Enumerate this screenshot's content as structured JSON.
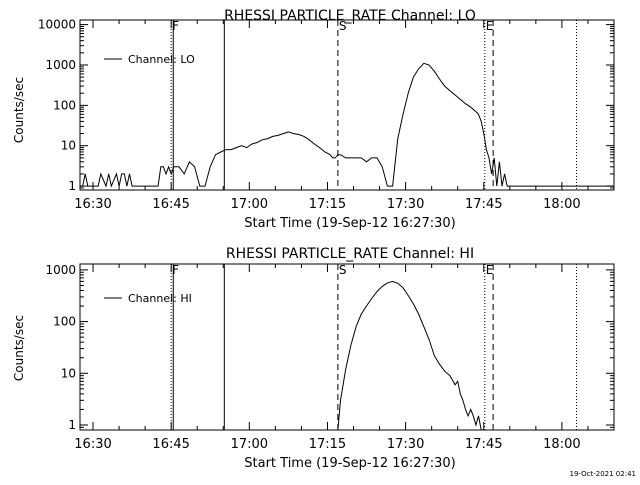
{
  "footer_timestamp": "19-Oct-2021 02:41",
  "colors": {
    "background": "#ffffff",
    "foreground": "#000000"
  },
  "chart_data": [
    {
      "type": "line",
      "title": "RHESSI PARTICLE_RATE Channel: LO",
      "xlabel": "Start Time (19-Sep-12 16:27:30)",
      "ylabel": "Counts/sec",
      "x_units": "minutes after 16:27:30",
      "xlim": [
        0,
        102.5
      ],
      "y_scale": "log",
      "ylim": [
        0.8,
        13000
      ],
      "x_ticks": [
        {
          "t": 2.5,
          "label": "16:30"
        },
        {
          "t": 17.5,
          "label": "16:45"
        },
        {
          "t": 32.5,
          "label": "17:00"
        },
        {
          "t": 47.5,
          "label": "17:15"
        },
        {
          "t": 62.5,
          "label": "17:30"
        },
        {
          "t": 77.5,
          "label": "17:45"
        },
        {
          "t": 92.5,
          "label": "18:00"
        }
      ],
      "y_ticks": [
        {
          "v": 1,
          "label": "1"
        },
        {
          "v": 10,
          "label": "10"
        },
        {
          "v": 100,
          "label": "100"
        },
        {
          "v": 1000,
          "label": "1000"
        },
        {
          "v": 10000,
          "label": "10000"
        }
      ],
      "markers": [
        {
          "t": 17.5,
          "style": "dotted",
          "label": "F"
        },
        {
          "t": 17.9,
          "style": "solid",
          "label": ""
        },
        {
          "t": 27.7,
          "style": "solid",
          "label": ""
        },
        {
          "t": 49.5,
          "style": "dashed",
          "label": "S"
        },
        {
          "t": 77.7,
          "style": "dotted",
          "label": "E"
        },
        {
          "t": 79.3,
          "style": "dashed",
          "label": ""
        },
        {
          "t": 95.3,
          "style": "dotted",
          "label": ""
        }
      ],
      "legend": {
        "position": "top-left",
        "entries": [
          "Channel: LO"
        ]
      },
      "series": [
        {
          "name": "Channel: LO",
          "x": [
            0,
            0.5,
            1.0,
            1.5,
            2.0,
            3.0,
            3.5,
            4.0,
            5.0,
            5.5,
            6.0,
            7.0,
            7.5,
            8.0,
            8.5,
            9.0,
            9.5,
            10.0,
            10.5,
            11.0,
            11.5,
            12.0,
            13.0,
            13.5,
            14.0,
            15.0,
            15.5,
            16.0,
            16.5,
            17.0,
            17.5,
            18.0,
            19.0,
            20.0,
            21.0,
            22.0,
            23.0,
            24.0,
            25.0,
            26.0,
            27.0,
            28.0,
            29.0,
            30.0,
            31.0,
            32.0,
            33.0,
            34.0,
            35.0,
            36.0,
            37.0,
            38.0,
            39.0,
            40.0,
            41.0,
            42.0,
            43.0,
            44.0,
            45.0,
            46.0,
            47.0,
            48.0,
            48.5,
            49.0,
            49.5,
            50.0,
            51.0,
            52.0,
            53.0,
            54.0,
            55.0,
            56.0,
            57.0,
            58.0,
            59.0,
            60.0,
            61.0,
            62.0,
            63.0,
            64.0,
            65.0,
            66.0,
            67.0,
            68.0,
            69.0,
            70.0,
            71.0,
            72.0,
            73.0,
            74.0,
            75.0,
            76.0,
            76.5,
            77.0,
            77.5,
            78.0,
            78.5,
            79.0,
            79.5,
            80.0,
            80.5,
            81.0,
            81.5,
            82.0,
            82.5,
            83.0,
            84.0,
            85.0,
            86.0,
            87.0,
            88.0,
            89.0,
            90.0,
            91.0,
            92.0,
            93.0,
            94.0,
            95.0,
            96.0,
            97.0,
            98.0,
            99.0,
            100.0,
            101.0,
            102.5
          ],
          "y": [
            1,
            1,
            2,
            1,
            1,
            1,
            1,
            2,
            1,
            2,
            1,
            2,
            1,
            2,
            2,
            1,
            2,
            1,
            1,
            1,
            1,
            1,
            1,
            1,
            1,
            1,
            3,
            3,
            2,
            3,
            2,
            3,
            3,
            2,
            4,
            3,
            1,
            1,
            3,
            6,
            7,
            8,
            8,
            9,
            10,
            9,
            11,
            12,
            14,
            15,
            17,
            18,
            20,
            22,
            20,
            19,
            17,
            14,
            11,
            9,
            7,
            6,
            5,
            5,
            6,
            6,
            5,
            5,
            5,
            5,
            4,
            5,
            5,
            3,
            1,
            1,
            15,
            60,
            200,
            500,
            800,
            1100,
            1000,
            700,
            450,
            300,
            230,
            180,
            140,
            110,
            90,
            70,
            60,
            40,
            20,
            8,
            5,
            2,
            5,
            1,
            4,
            1,
            2,
            1,
            1,
            1,
            1,
            1,
            1,
            1,
            1,
            1,
            1,
            1,
            1,
            1,
            1,
            1,
            1,
            1,
            1,
            1,
            1,
            1,
            1
          ]
        }
      ]
    },
    {
      "type": "line",
      "title": "RHESSI PARTICLE_RATE Channel: HI",
      "xlabel": "Start Time (19-Sep-12 16:27:30)",
      "ylabel": "Counts/sec",
      "x_units": "minutes after 16:27:30",
      "xlim": [
        0,
        102.5
      ],
      "y_scale": "log",
      "ylim": [
        0.8,
        1300
      ],
      "x_ticks": [
        {
          "t": 2.5,
          "label": "16:30"
        },
        {
          "t": 17.5,
          "label": "16:45"
        },
        {
          "t": 32.5,
          "label": "17:00"
        },
        {
          "t": 47.5,
          "label": "17:15"
        },
        {
          "t": 62.5,
          "label": "17:30"
        },
        {
          "t": 77.5,
          "label": "17:45"
        },
        {
          "t": 92.5,
          "label": "18:00"
        }
      ],
      "y_ticks": [
        {
          "v": 1,
          "label": "1"
        },
        {
          "v": 10,
          "label": "10"
        },
        {
          "v": 100,
          "label": "100"
        },
        {
          "v": 1000,
          "label": "1000"
        }
      ],
      "markers": [
        {
          "t": 17.5,
          "style": "dotted",
          "label": "F"
        },
        {
          "t": 17.9,
          "style": "solid",
          "label": ""
        },
        {
          "t": 27.7,
          "style": "solid",
          "label": ""
        },
        {
          "t": 49.5,
          "style": "dashed",
          "label": "S"
        },
        {
          "t": 77.7,
          "style": "dotted",
          "label": "E"
        },
        {
          "t": 79.3,
          "style": "dashed",
          "label": ""
        },
        {
          "t": 95.3,
          "style": "dotted",
          "label": ""
        }
      ],
      "legend": {
        "position": "top-left",
        "entries": [
          "Channel: HI"
        ]
      },
      "series": [
        {
          "name": "Channel: HI",
          "x": [
            49.5,
            50.0,
            51.0,
            52.0,
            53.0,
            54.0,
            55.0,
            56.0,
            57.0,
            58.0,
            59.0,
            60.0,
            61.0,
            62.0,
            63.0,
            64.0,
            65.0,
            66.0,
            67.0,
            68.0,
            69.0,
            70.0,
            71.0,
            72.0,
            72.5,
            73.0,
            73.5,
            74.0,
            74.5,
            75.0,
            75.5,
            76.0,
            76.5,
            77.0
          ],
          "y": [
            0.8,
            3,
            12,
            35,
            80,
            140,
            200,
            280,
            380,
            480,
            560,
            600,
            550,
            450,
            320,
            220,
            140,
            80,
            45,
            22,
            15,
            11,
            9,
            6,
            7,
            4,
            3,
            2,
            1.5,
            2,
            1.5,
            1,
            1.5,
            0.8
          ]
        }
      ]
    }
  ]
}
